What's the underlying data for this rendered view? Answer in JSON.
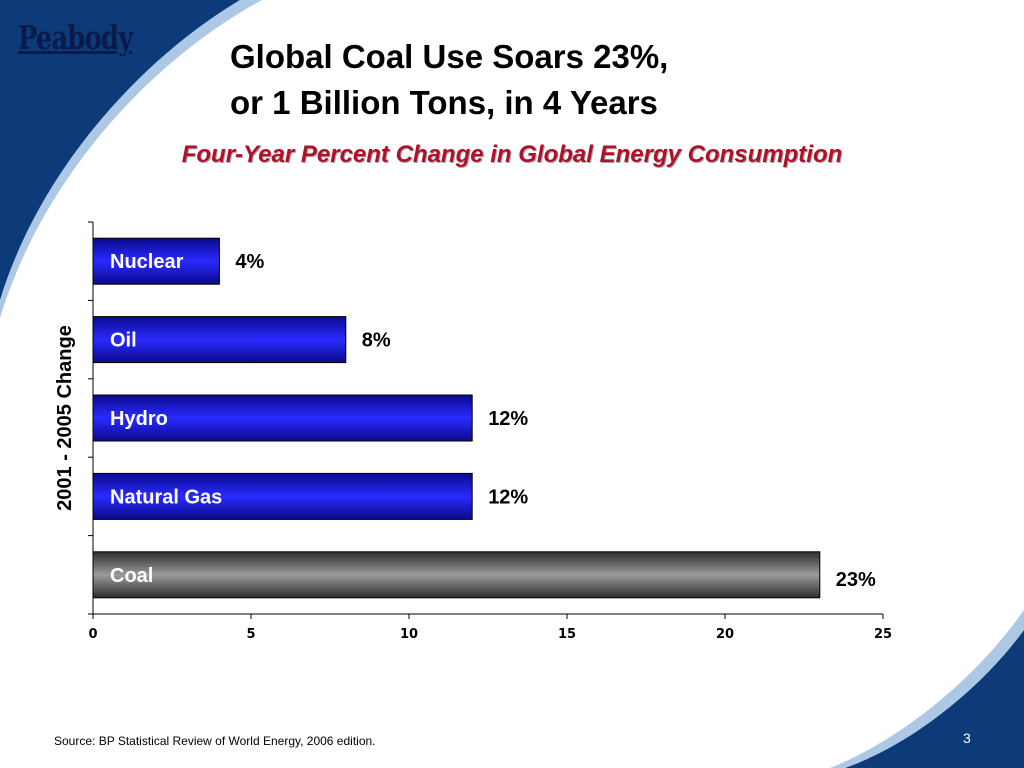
{
  "slide": {
    "logo_text": "Peabody",
    "title_line1": "Global Coal Use Soars 23%,",
    "title_line2": "or 1 Billion Tons, in 4 Years",
    "subtitle": "Four-Year Percent Change in Global Energy Consumption",
    "source": "Source:  BP Statistical Review of World Energy, 2006 edition.",
    "page_number": "3"
  },
  "chart_data": {
    "type": "bar",
    "orientation": "horizontal",
    "categories": [
      "Nuclear",
      "Oil",
      "Hydro",
      "Natural Gas",
      "Coal"
    ],
    "values": [
      4,
      8,
      12,
      12,
      23
    ],
    "data_labels": [
      "4%",
      "8%",
      "12%",
      "12%",
      "23%"
    ],
    "ylabel": "2001 - 2005 Change",
    "xlim": [
      0,
      25
    ],
    "xticks": [
      0,
      5,
      10,
      15,
      20,
      25
    ],
    "grid": false,
    "colors": {
      "default_bar": "#1010e0",
      "highlight_bar": "#7a7a7a",
      "highlight_category": "Coal"
    }
  },
  "colors": {
    "swoosh_dark": "#0d3a78",
    "swoosh_light": "#8ab0d8",
    "subtitle": "#b0102a"
  }
}
